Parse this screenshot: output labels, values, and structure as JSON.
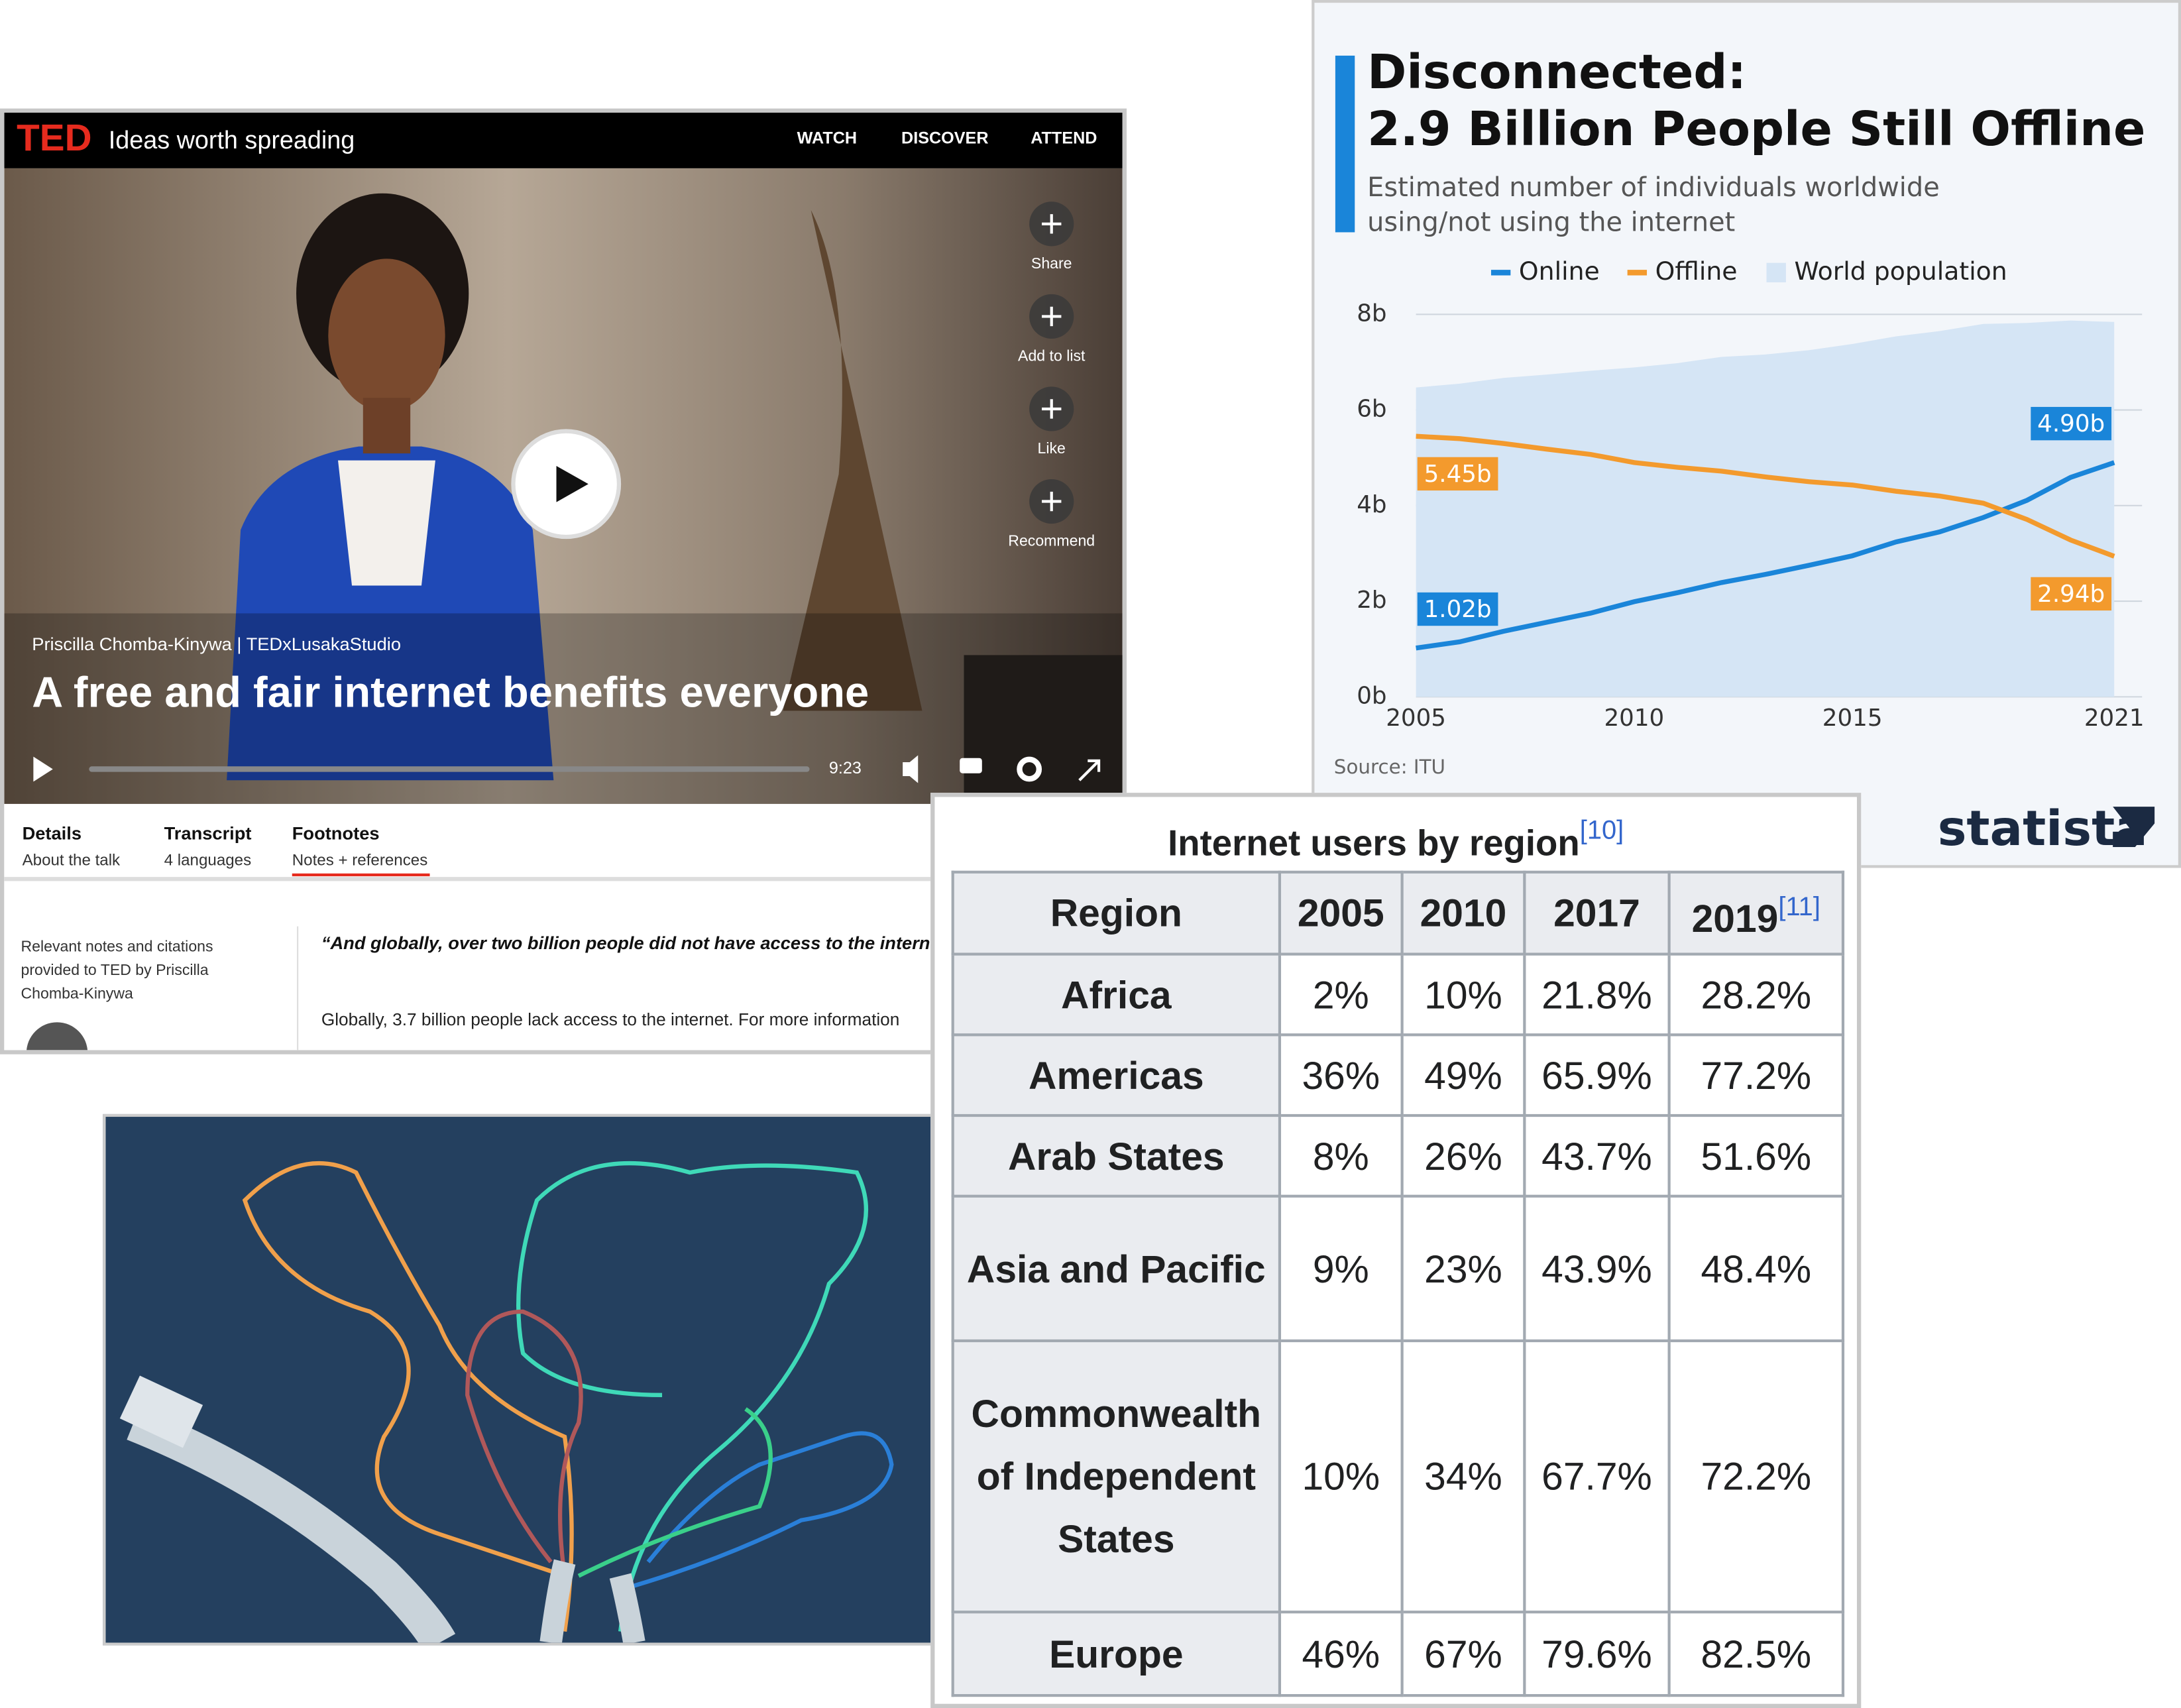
{
  "ted": {
    "logo": "TED",
    "tagline": "Ideas worth spreading",
    "nav": [
      "WATCH",
      "DISCOVER",
      "ATTEND"
    ],
    "speaker": "Priscilla Chomba-Kinywa | TEDxLusakaStudio",
    "talk_title": "A free and fair internet benefits everyone",
    "duration": "9:23",
    "actions": [
      "Share",
      "Add to list",
      "Like",
      "Recommend"
    ],
    "tabs": [
      {
        "title": "Details",
        "sub": "About the talk"
      },
      {
        "title": "Transcript",
        "sub": "4 languages"
      },
      {
        "title": "Footnotes",
        "sub": "Notes + references"
      }
    ],
    "notes_intro": "Relevant notes and citations provided to TED by Priscilla Chomba-Kinywa",
    "quote": "“And globally, over two billion people did not have access to the internet.",
    "note": "Globally, 3.7 billion people lack access to the internet. For more information"
  },
  "chart_data": {
    "type": "line",
    "title": [
      "Disconnected:",
      "2.9 Billion People Still Offline"
    ],
    "subtitle": [
      "Estimated number of individuals worldwide",
      "using/not using the internet"
    ],
    "x": [
      2005,
      2006,
      2007,
      2008,
      2009,
      2010,
      2011,
      2012,
      2013,
      2014,
      2015,
      2016,
      2017,
      2018,
      2019,
      2020,
      2021
    ],
    "series": [
      {
        "name": "Online",
        "color": "#1a85d9",
        "label_position": "above",
        "values": [
          1.02,
          1.15,
          1.37,
          1.56,
          1.75,
          1.99,
          2.18,
          2.39,
          2.56,
          2.75,
          2.95,
          3.24,
          3.45,
          3.75,
          4.11,
          4.59,
          4.9
        ],
        "value_labels": [
          "1.02b",
          null,
          null,
          null,
          null,
          null,
          null,
          null,
          null,
          null,
          null,
          null,
          null,
          null,
          null,
          null,
          "4.90b"
        ]
      },
      {
        "name": "Offline",
        "color": "#f39a2d",
        "label_position": "below",
        "values": [
          5.45,
          5.4,
          5.3,
          5.18,
          5.07,
          4.9,
          4.8,
          4.72,
          4.6,
          4.5,
          4.43,
          4.3,
          4.2,
          4.05,
          3.71,
          3.28,
          2.94
        ],
        "value_labels": [
          "5.45b",
          null,
          null,
          null,
          null,
          null,
          null,
          null,
          null,
          null,
          null,
          null,
          null,
          null,
          null,
          null,
          "2.94b"
        ]
      },
      {
        "name": "World population",
        "color": "#d5e5f5",
        "area": true,
        "values": [
          6.47,
          6.55,
          6.67,
          6.74,
          6.82,
          6.89,
          6.98,
          7.11,
          7.16,
          7.25,
          7.38,
          7.54,
          7.65,
          7.8,
          7.82,
          7.87,
          7.84
        ]
      }
    ],
    "xlim": [
      2005,
      2021
    ],
    "xticks": [
      2005,
      2010,
      2015,
      2021
    ],
    "ylim": [
      0,
      8
    ],
    "yticks": [
      {
        "value": 0,
        "label": "0b"
      },
      {
        "value": 2,
        "label": "2b"
      },
      {
        "value": 4,
        "label": "4b"
      },
      {
        "value": 6,
        "label": "6b"
      },
      {
        "value": 8,
        "label": "8b"
      }
    ],
    "grid": true,
    "source": "Source: ITU",
    "brand": "statista"
  },
  "wiki_table": {
    "caption": {
      "text": "Internet users by region",
      "ref": "[10]"
    },
    "columns": [
      "Region",
      "2005",
      "2010",
      "2017",
      {
        "label": "2019",
        "ref": "[11]"
      }
    ],
    "rows": [
      [
        "Africa",
        "2%",
        "10%",
        "21.8%",
        "28.2%"
      ],
      [
        "Americas",
        "36%",
        "49%",
        "65.9%",
        "77.2%"
      ],
      [
        "Arab States",
        "8%",
        "26%",
        "43.7%",
        "51.6%"
      ],
      [
        "Asia and Pacific",
        "9%",
        "23%",
        "43.9%",
        "48.4%"
      ],
      [
        "Commonwealth of Independent States",
        "10%",
        "34%",
        "67.7%",
        "72.2%"
      ],
      [
        "Europe",
        "46%",
        "67%",
        "79.6%",
        "82.5%"
      ]
    ]
  }
}
